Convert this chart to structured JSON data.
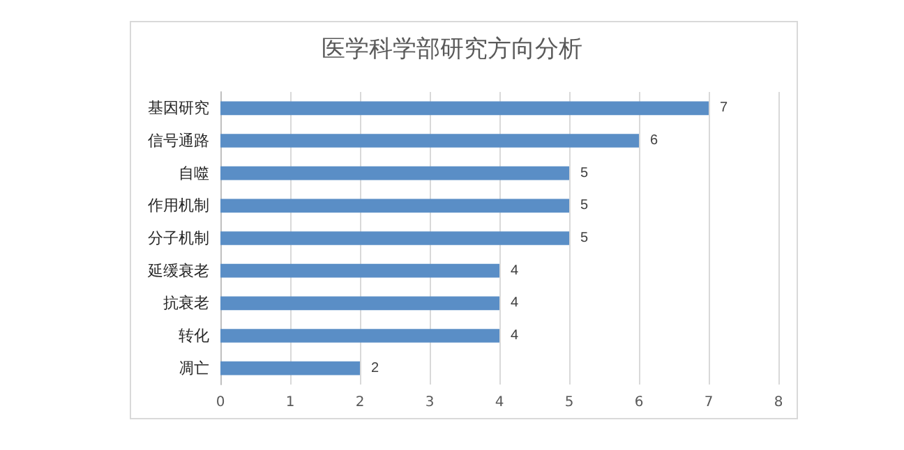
{
  "chart_data": {
    "type": "bar",
    "title": "医学科学部研究方向分析",
    "orientation": "horizontal",
    "categories": [
      "基因研究",
      "信号通路",
      "自噬",
      "作用机制",
      "分子机制",
      "延缓衰老",
      "抗衰老",
      "转化",
      "凋亡"
    ],
    "values": [
      7,
      6,
      5,
      5,
      5,
      4,
      4,
      4,
      2
    ],
    "color": "#5a8ec6",
    "xlim": [
      0,
      8
    ],
    "xticks": [
      0,
      1,
      2,
      3,
      4,
      5,
      6,
      7,
      8
    ],
    "grid": "x",
    "data_labels": true
  }
}
